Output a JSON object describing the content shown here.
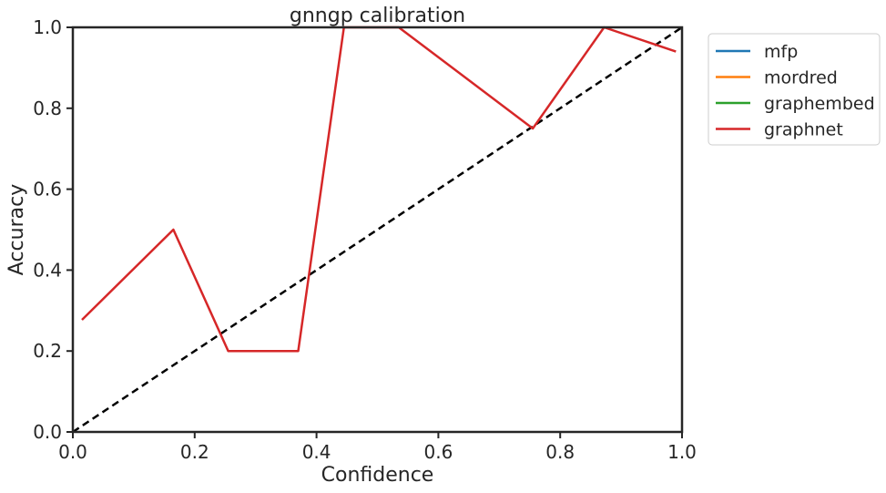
{
  "chart_data": {
    "type": "line",
    "title": "gnngp calibration",
    "xlabel": "Confidence",
    "ylabel": "Accuracy",
    "xlim": [
      0.0,
      1.0
    ],
    "ylim": [
      0.0,
      1.0
    ],
    "x_ticks": [
      "0.0",
      "0.2",
      "0.4",
      "0.6",
      "0.8",
      "1.0"
    ],
    "y_ticks": [
      "0.0",
      "0.2",
      "0.4",
      "0.6",
      "0.8",
      "1.0"
    ],
    "grid": false,
    "legend_position": "outside-top-right",
    "series": [
      {
        "name": "mfp",
        "color": "#1f77b4",
        "points": []
      },
      {
        "name": "mordred",
        "color": "#ff7f0e",
        "points": []
      },
      {
        "name": "graphembed",
        "color": "#2ca02c",
        "points": []
      },
      {
        "name": "graphnet",
        "color": "#d62728",
        "points": [
          [
            0.015,
            0.277
          ],
          [
            0.165,
            0.5
          ],
          [
            0.255,
            0.2
          ],
          [
            0.37,
            0.2
          ],
          [
            0.445,
            1.0
          ],
          [
            0.535,
            1.0
          ],
          [
            0.755,
            0.75
          ],
          [
            0.872,
            1.0
          ],
          [
            0.99,
            0.94
          ]
        ]
      }
    ],
    "reference_line": {
      "style": "dashed",
      "color": "#000000",
      "points": [
        [
          0.0,
          0.0
        ],
        [
          1.0,
          1.0
        ]
      ]
    }
  }
}
